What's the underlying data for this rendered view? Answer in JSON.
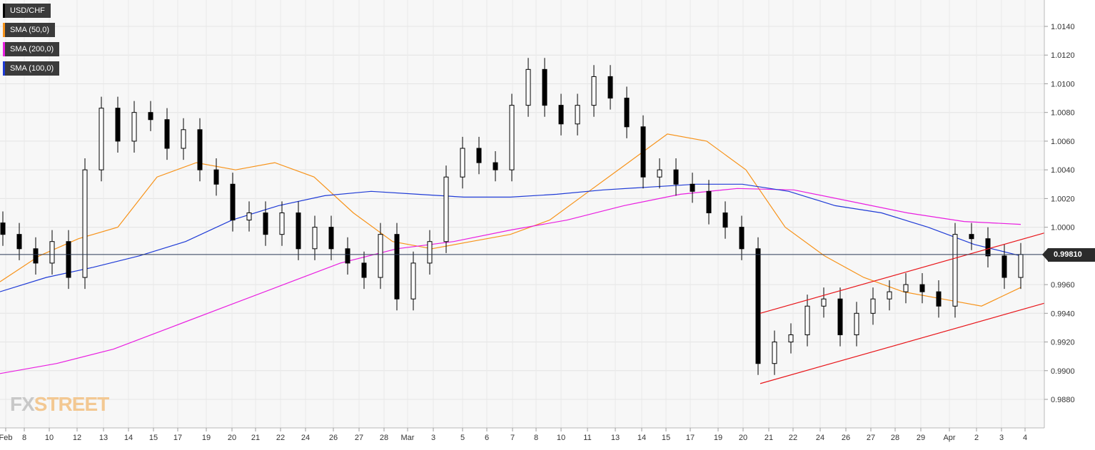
{
  "legend": [
    {
      "label": "USD/CHF",
      "color": "#000000"
    },
    {
      "label": "SMA (50,0)",
      "color": "#f7931a"
    },
    {
      "label": "SMA (200,0)",
      "color": "#e91ee0"
    },
    {
      "label": "SMA (100,0)",
      "color": "#1f3bd6"
    }
  ],
  "last_price_label": "0.99810",
  "logo": {
    "part1": "FX",
    "part2": "STREET"
  },
  "chart_data": {
    "type": "candlestick",
    "title": "",
    "symbol": "USD/CHF",
    "ylim": [
      0.9865,
      1.0155
    ],
    "y_ticks": [
      "1.0140",
      "1.0120",
      "1.0100",
      "1.0080",
      "1.0060",
      "1.0040",
      "1.0020",
      "1.0000",
      "0.9960",
      "0.9940",
      "0.9920",
      "0.9900",
      "0.9880"
    ],
    "x_ticks": [
      "Feb",
      "8",
      "10",
      "12",
      "13",
      "14",
      "15",
      "17",
      "19",
      "20",
      "21",
      "22",
      "24",
      "26",
      "27",
      "28",
      "Mar",
      "3",
      "5",
      "6",
      "7",
      "8",
      "10",
      "11",
      "13",
      "14",
      "15",
      "17",
      "19",
      "20",
      "21",
      "22",
      "24",
      "26",
      "27",
      "28",
      "29",
      "Apr",
      "2",
      "3",
      "4"
    ],
    "last_price": 0.9981,
    "closes": [
      0.9995,
      0.9985,
      0.9975,
      0.999,
      0.9965,
      1.004,
      1.0083,
      1.006,
      1.008,
      1.0075,
      1.0055,
      1.0068,
      1.004,
      1.003,
      1.0005,
      1.001,
      0.9995,
      1.001,
      0.9985,
      1.0,
      0.9985,
      0.9975,
      0.9965,
      0.9995,
      0.995,
      0.9975,
      0.999,
      1.0035,
      1.0055,
      1.0045,
      1.004,
      1.0085,
      1.011,
      1.0085,
      1.0072,
      1.0085,
      1.0105,
      1.009,
      1.007,
      1.0035,
      1.004,
      1.003,
      1.0025,
      1.001,
      1.0,
      0.9985,
      0.9905,
      0.992,
      0.9925,
      0.9945,
      0.995,
      0.9925,
      0.994,
      0.995,
      0.9955,
      0.996,
      0.9955,
      0.9945,
      0.9995,
      0.9992,
      0.998,
      0.9965,
      0.9981
    ],
    "series": [
      {
        "name": "SMA (50,0)",
        "color": "#f7931a",
        "values": [
          0.9962,
          0.998,
          0.9992,
          1.0,
          1.0035,
          1.0045,
          1.004,
          1.0045,
          1.0035,
          1.001,
          0.999,
          0.9985,
          0.999,
          0.9995,
          1.0005,
          1.0025,
          1.0045,
          1.0065,
          1.006,
          1.004,
          1.0,
          0.998,
          0.9965,
          0.9955,
          0.995,
          0.9945,
          0.9958
        ]
      },
      {
        "name": "SMA (200,0)",
        "color": "#e91ee0",
        "values": [
          0.9898,
          0.9905,
          0.9915,
          0.993,
          0.9945,
          0.996,
          0.9975,
          0.9985,
          0.999,
          0.9998,
          1.0005,
          1.0015,
          1.0023,
          1.0027,
          1.0026,
          1.0018,
          1.001,
          1.0004,
          1.0002
        ]
      },
      {
        "name": "SMA (100,0)",
        "color": "#1f3bd6",
        "values": [
          0.9955,
          0.9965,
          0.9972,
          0.998,
          0.999,
          1.0005,
          1.0015,
          1.0022,
          1.0025,
          1.0023,
          1.0021,
          1.0021,
          1.0023,
          1.0026,
          1.0028,
          1.003,
          1.003,
          1.0025,
          1.0015,
          1.001,
          1.0,
          0.9988,
          0.998
        ]
      }
    ],
    "trendlines": [
      {
        "name": "channel-upper",
        "color": "#e8151a",
        "from": [
          0.994
        ],
        "to": [
          0.9996
        ]
      },
      {
        "name": "channel-lower",
        "color": "#e8151a",
        "from": [
          0.9891
        ],
        "to": [
          0.9947
        ]
      }
    ],
    "grid": true,
    "legend_position": "top-left"
  }
}
